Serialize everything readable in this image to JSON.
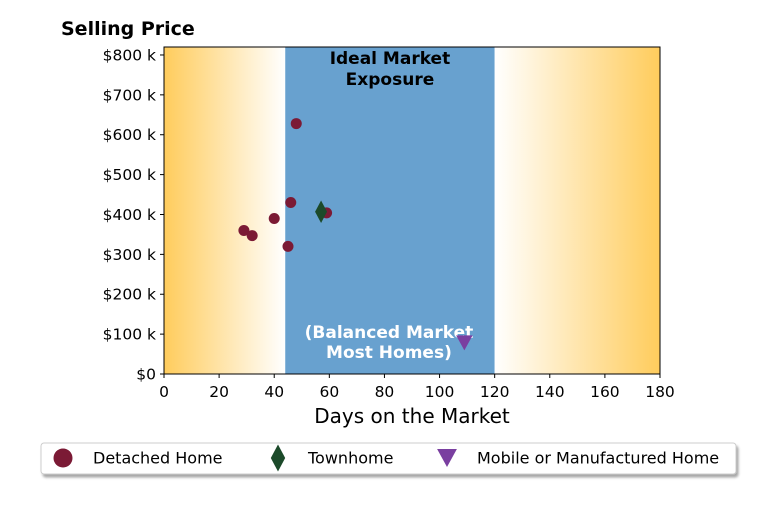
{
  "chart_data": {
    "type": "scatter",
    "title": "Selling Price",
    "xlabel": "Days on the Market",
    "ylabel": "",
    "xlim": [
      0,
      180
    ],
    "ylim": [
      0,
      820000
    ],
    "x_ticks": [
      0,
      20,
      40,
      60,
      80,
      100,
      120,
      140,
      160,
      180
    ],
    "x_tick_labels": [
      "0",
      "20",
      "40",
      "60",
      "80",
      "100",
      "120",
      "140",
      "160",
      "180"
    ],
    "y_ticks": [
      0,
      100000,
      200000,
      300000,
      400000,
      500000,
      600000,
      700000,
      800000
    ],
    "y_tick_labels": [
      "$0",
      "$100 k",
      "$200 k",
      "$300 k",
      "$400 k",
      "$500 k",
      "$600 k",
      "$700 k",
      "$800 k"
    ],
    "zones": {
      "ideal": {
        "x_start": 44,
        "x_end": 120,
        "label_lines": [
          "Ideal Market",
          "Exposure"
        ],
        "color": "#68a1cf"
      },
      "balanced_label_lines": [
        "(Balanced Market",
        "Most Homes)"
      ],
      "gradient_edge_color": "#ffcc5c",
      "gradient_mid_color": "#ffffff"
    },
    "series": [
      {
        "name": "Detached Home",
        "marker": "circle",
        "color": "#7b1a35",
        "points": [
          {
            "x": 29,
            "y": 360000
          },
          {
            "x": 32,
            "y": 347000
          },
          {
            "x": 40,
            "y": 390000
          },
          {
            "x": 45,
            "y": 320000
          },
          {
            "x": 46,
            "y": 430000
          },
          {
            "x": 48,
            "y": 628000
          },
          {
            "x": 59,
            "y": 404000
          }
        ]
      },
      {
        "name": "Townhome",
        "marker": "diamond",
        "color": "#1c4a2a",
        "points": [
          {
            "x": 57,
            "y": 407000
          }
        ]
      },
      {
        "name": "Mobile or Manufactured Home",
        "marker": "triangle-down",
        "color": "#7a3fa0",
        "points": [
          {
            "x": 109,
            "y": 78000
          }
        ]
      }
    ],
    "legend": {
      "placement": "bottom",
      "columns": 3
    }
  }
}
